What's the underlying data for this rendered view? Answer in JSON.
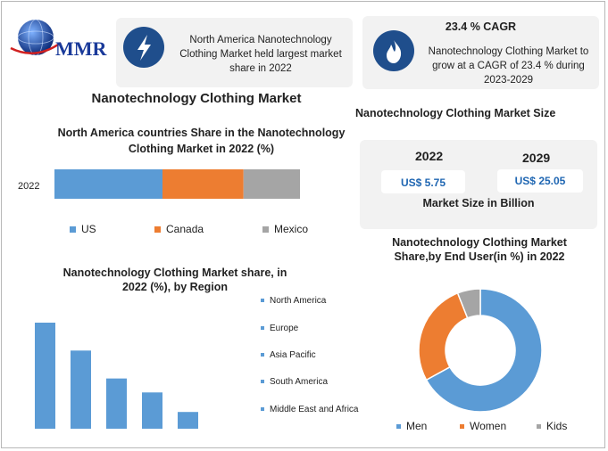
{
  "logo": {
    "text": "MMR"
  },
  "colors": {
    "blue": "#5b9bd5",
    "orange": "#ed7d31",
    "gray": "#a5a5a5",
    "navy": "#1f4e8c",
    "value_text": "#1f66b2"
  },
  "info_cards": [
    {
      "icon": "lightning-icon",
      "text": "North America Nanotechnology Clothing Market held largest market share in 2022"
    },
    {
      "icon": "flame-icon",
      "title": "23.4 % CAGR",
      "text": "Nanotechnology Clothing Market to grow at a CAGR of 23.4 % during 2023-2029"
    }
  ],
  "main_title": "Nanotechnology Clothing Market",
  "market_size": {
    "title": "Nanotechnology Clothing Market Size",
    "years": [
      "2022",
      "2029"
    ],
    "values": [
      "US$ 5.75",
      "US$ 25.05"
    ],
    "caption": "Market Size in Billion"
  },
  "chart_data": [
    {
      "type": "bar",
      "orientation": "horizontal-stacked",
      "title": "North America countries Share in the Nanotechnology Clothing Market in 2022 (%)",
      "categories": [
        "2022"
      ],
      "series": [
        {
          "name": "US",
          "values": [
            44
          ]
        },
        {
          "name": "Canada",
          "values": [
            33
          ]
        },
        {
          "name": "Mexico",
          "values": [
            23
          ]
        }
      ],
      "legend": "bottom"
    },
    {
      "type": "bar",
      "title": "Nanotechnology Clothing Market share, in 2022 (%), by Region",
      "categories": [
        "North America",
        "Europe",
        "Asia Pacific",
        "South America",
        "Middle East and Africa"
      ],
      "values": [
        38,
        28,
        18,
        13,
        6
      ],
      "legend": "right"
    },
    {
      "type": "pie",
      "variant": "donut",
      "title": "Nanotechnology Clothing Market Share,by End User(in %) in 2022",
      "categories": [
        "Men",
        "Women",
        "Kids"
      ],
      "values": [
        67,
        27,
        6
      ],
      "legend": "bottom"
    }
  ]
}
